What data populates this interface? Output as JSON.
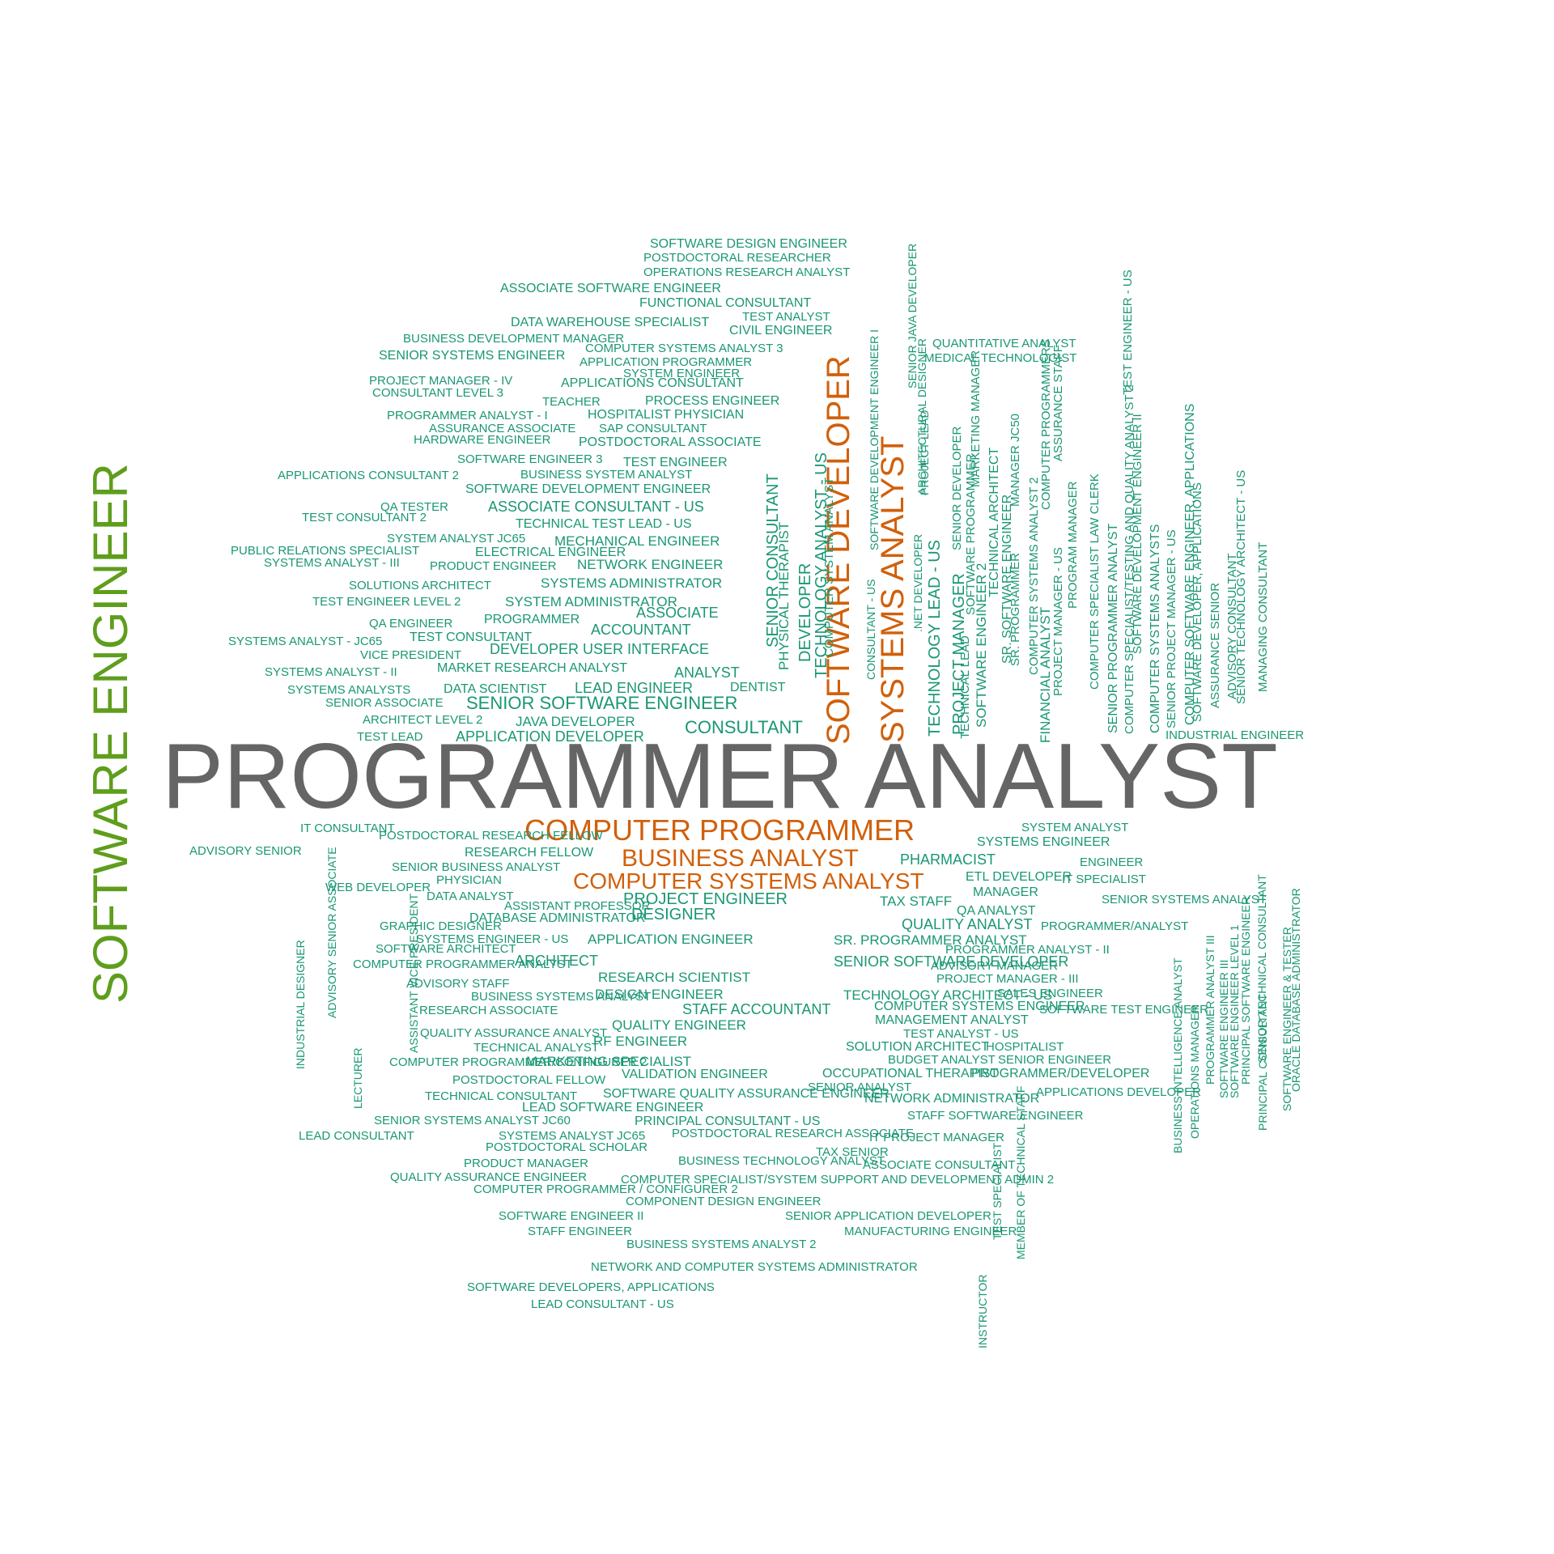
{
  "colors": {
    "green": "#1a9774",
    "orange": "#d1600b",
    "gray": "#656565",
    "lime": "#5e9e1c"
  },
  "words": [
    {
      "t": "PROGRAMMER ANALYST",
      "c": "gray"
    },
    {
      "t": "SOFTWARE ENGINEER",
      "c": "lime"
    },
    {
      "t": "COMPUTER PROGRAMMER",
      "c": "orange"
    },
    {
      "t": "BUSINESS ANALYST",
      "c": "orange"
    },
    {
      "t": "COMPUTER SYSTEMS ANALYST",
      "c": "orange"
    },
    {
      "t": "SOFTWARE DEVELOPER",
      "c": "orange"
    },
    {
      "t": "SYSTEMS ANALYST",
      "c": "orange"
    },
    {
      "t": "SOFTWARE DESIGN ENGINEER"
    },
    {
      "t": "POSTDOCTORAL RESEARCHER"
    },
    {
      "t": "OPERATIONS RESEARCH ANALYST"
    },
    {
      "t": "ASSOCIATE SOFTWARE ENGINEER"
    },
    {
      "t": "FUNCTIONAL CONSULTANT"
    },
    {
      "t": "TEST ANALYST"
    },
    {
      "t": "DATA WAREHOUSE SPECIALIST"
    },
    {
      "t": "CIVIL ENGINEER"
    },
    {
      "t": "BUSINESS DEVELOPMENT MANAGER"
    },
    {
      "t": "COMPUTER SYSTEMS ANALYST 3"
    },
    {
      "t": "SENIOR SYSTEMS ENGINEER"
    },
    {
      "t": "APPLICATION PROGRAMMER"
    },
    {
      "t": "SYSTEM ENGINEER"
    },
    {
      "t": "PROJECT MANAGER - IV"
    },
    {
      "t": "APPLICATIONS CONSULTANT"
    },
    {
      "t": "CONSULTANT LEVEL 3"
    },
    {
      "t": "TEACHER"
    },
    {
      "t": "PROCESS ENGINEER"
    },
    {
      "t": "PROGRAMMER ANALYST - I"
    },
    {
      "t": "HOSPITALIST PHYSICIAN"
    },
    {
      "t": "ASSURANCE ASSOCIATE"
    },
    {
      "t": "SAP CONSULTANT"
    },
    {
      "t": "HARDWARE ENGINEER"
    },
    {
      "t": "POSTDOCTORAL ASSOCIATE"
    },
    {
      "t": "SOFTWARE ENGINEER 3"
    },
    {
      "t": "TEST ENGINEER"
    },
    {
      "t": "APPLICATIONS CONSULTANT 2"
    },
    {
      "t": "BUSINESS SYSTEM ANALYST"
    },
    {
      "t": "SOFTWARE DEVELOPMENT ENGINEER"
    },
    {
      "t": "QA TESTER"
    },
    {
      "t": "ASSOCIATE CONSULTANT - US"
    },
    {
      "t": "TEST CONSULTANT 2"
    },
    {
      "t": "TECHNICAL TEST LEAD - US"
    },
    {
      "t": "SYSTEM ANALYST JC65"
    },
    {
      "t": "MECHANICAL ENGINEER"
    },
    {
      "t": "PUBLIC RELATIONS SPECIALIST"
    },
    {
      "t": "ELECTRICAL ENGINEER"
    },
    {
      "t": "SYSTEMS ANALYST - III"
    },
    {
      "t": "PRODUCT ENGINEER"
    },
    {
      "t": "NETWORK ENGINEER"
    },
    {
      "t": "SOLUTIONS ARCHITECT"
    },
    {
      "t": "SYSTEMS ADMINISTRATOR"
    },
    {
      "t": "TEST ENGINEER LEVEL 2"
    },
    {
      "t": "SYSTEM ADMINISTRATOR"
    },
    {
      "t": "ASSOCIATE"
    },
    {
      "t": "QA ENGINEER"
    },
    {
      "t": "PROGRAMMER"
    },
    {
      "t": "ACCOUNTANT"
    },
    {
      "t": "SYSTEMS ANALYST - JC65"
    },
    {
      "t": "TEST CONSULTANT"
    },
    {
      "t": "VICE PRESIDENT"
    },
    {
      "t": "DEVELOPER USER INTERFACE"
    },
    {
      "t": "SYSTEMS ANALYST - II"
    },
    {
      "t": "MARKET RESEARCH ANALYST"
    },
    {
      "t": "ANALYST"
    },
    {
      "t": "SYSTEMS ANALYSTS"
    },
    {
      "t": "DATA SCIENTIST"
    },
    {
      "t": "LEAD ENGINEER"
    },
    {
      "t": "DENTIST"
    },
    {
      "t": "SENIOR ASSOCIATE"
    },
    {
      "t": "SENIOR SOFTWARE ENGINEER"
    },
    {
      "t": "ARCHITECT LEVEL 2"
    },
    {
      "t": "JAVA DEVELOPER"
    },
    {
      "t": "CONSULTANT"
    },
    {
      "t": "TEST LEAD"
    },
    {
      "t": "APPLICATION DEVELOPER"
    },
    {
      "t": "QUANTITATIVE ANALYST"
    },
    {
      "t": "MEDICAL TECHNOLOGIST"
    },
    {
      "t": "INDUSTRIAL ENGINEER"
    },
    {
      "t": "TECHNOLOGY ANALYST - US"
    },
    {
      "t": "SENIOR CONSULTANT"
    },
    {
      "t": "PHYSICAL THERAPIST"
    },
    {
      "t": "DEVELOPER"
    },
    {
      "t": "COMPUTER SYSTEM ANALYST"
    },
    {
      "t": "SOFTWARE DEVELOPMENT ENGINEER I"
    },
    {
      "t": "CONSULTANT - US"
    },
    {
      "t": "SENIOR JAVA DEVELOPER"
    },
    {
      "t": "ARCHITECTURAL DESIGNER"
    },
    {
      "t": "TECHNOLOGY LEAD - US"
    },
    {
      "t": ".NET DEVELOPER"
    },
    {
      "t": "PROJECT LEAD"
    },
    {
      "t": "PROJECT MANAGER"
    },
    {
      "t": "TECHNICAL LEAD"
    },
    {
      "t": "SENIOR DEVELOPER"
    },
    {
      "t": "SOFTWARE PROGRAMMER"
    },
    {
      "t": "SOFTWARE ENGINEER 2"
    },
    {
      "t": "MARKETING MANAGER"
    },
    {
      "t": "TECHNICAL ARCHITECT"
    },
    {
      "t": "SR. SOFTWARE ENGINEER"
    },
    {
      "t": "SR. PROGRAMMER"
    },
    {
      "t": "MANAGER JC50"
    },
    {
      "t": "COMPUTER SYSTEMS ANALYST 2"
    },
    {
      "t": "COMPUTER PROGRAMMERS"
    },
    {
      "t": "ASSURANCE STAFF"
    },
    {
      "t": "FINANCIAL ANALYST"
    },
    {
      "t": "PROJECT MANAGER - US"
    },
    {
      "t": "PROGRAM MANAGER"
    },
    {
      "t": "COMPUTER SPECIALIST LAW CLERK"
    },
    {
      "t": "SENIOR PROGRAMMER ANALYST"
    },
    {
      "t": "COMPUTER SPECIALIST/TESTING AND QUALITY ANALYST 2"
    },
    {
      "t": "TEST ENGINEER - US"
    },
    {
      "t": "SOFTWARE DEVELOPMENT ENGINEER II"
    },
    {
      "t": "COMPUTER SYSTEMS ANALYSTS"
    },
    {
      "t": "SENIOR PROJECT MANAGER - US"
    },
    {
      "t": "COMPUTER SOFTWARE ENGINEER, APPLICATIONS"
    },
    {
      "t": "SOFTWARE DEVELOPER, APPLICATIONS"
    },
    {
      "t": "ASSURANCE SENIOR"
    },
    {
      "t": "ADVISORY CONSULTANT"
    },
    {
      "t": "SENIOR TECHNOLOGY ARCHITECT - US"
    },
    {
      "t": "MANAGING CONSULTANT"
    },
    {
      "t": "IT CONSULTANT"
    },
    {
      "t": "POSTDOCTORAL RESEARCH FELLOW"
    },
    {
      "t": "ADVISORY SENIOR"
    },
    {
      "t": "RESEARCH FELLOW"
    },
    {
      "t": "SENIOR BUSINESS ANALYST"
    },
    {
      "t": "WEB DEVELOPER"
    },
    {
      "t": "PHYSICIAN"
    },
    {
      "t": "DATA ANALYST"
    },
    {
      "t": "ASSISTANT PROFESSOR"
    },
    {
      "t": "PROJECT ENGINEER"
    },
    {
      "t": "DATABASE ADMINISTRATOR"
    },
    {
      "t": "DESIGNER"
    },
    {
      "t": "GRAPHIC DESIGNER"
    },
    {
      "t": "SYSTEMS ENGINEER - US"
    },
    {
      "t": "APPLICATION ENGINEER"
    },
    {
      "t": "SOFTWARE ARCHITECT"
    },
    {
      "t": "COMPUTER PROGRAMMER ANALYST"
    },
    {
      "t": "ARCHITECT"
    },
    {
      "t": "SENIOR SOFTWARE DEVELOPER"
    },
    {
      "t": "RESEARCH SCIENTIST"
    },
    {
      "t": "ADVISORY STAFF"
    },
    {
      "t": "BUSINESS SYSTEMS ANALYST"
    },
    {
      "t": "DESIGN ENGINEER"
    },
    {
      "t": "TECHNOLOGY ARCHITECT - US"
    },
    {
      "t": "RESEARCH ASSOCIATE"
    },
    {
      "t": "STAFF ACCOUNTANT"
    },
    {
      "t": "COMPUTER SYSTEMS ENGINEER"
    },
    {
      "t": "QUALITY ENGINEER"
    },
    {
      "t": "QUALITY ASSURANCE ANALYST"
    },
    {
      "t": "RF ENGINEER"
    },
    {
      "t": "TECHNICAL ANALYST"
    },
    {
      "t": "COMPUTER PROGRAMMER/CONFIGURER 2"
    },
    {
      "t": "MARKETING SPECIALIST"
    },
    {
      "t": "POSTDOCTORAL FELLOW"
    },
    {
      "t": "VALIDATION ENGINEER"
    },
    {
      "t": "TECHNICAL CONSULTANT"
    },
    {
      "t": "SOFTWARE QUALITY ASSURANCE ENGINEER"
    },
    {
      "t": "LEAD SOFTWARE ENGINEER"
    },
    {
      "t": "SENIOR SYSTEMS ANALYST JC60"
    },
    {
      "t": "PRINCIPAL CONSULTANT - US"
    },
    {
      "t": "LEAD CONSULTANT"
    },
    {
      "t": "SYSTEMS ANALYST JC65"
    },
    {
      "t": "POSTDOCTORAL RESEARCH ASSOCIATE"
    },
    {
      "t": "POSTDOCTORAL SCHOLAR"
    },
    {
      "t": "PRODUCT MANAGER"
    },
    {
      "t": "BUSINESS TECHNOLOGY ANALYST"
    },
    {
      "t": "QUALITY ASSURANCE ENGINEER"
    },
    {
      "t": "COMPUTER SPECIALIST/SYSTEM SUPPORT AND DEVELOPMENT ADMIN 2"
    },
    {
      "t": "COMPUTER PROGRAMMER / CONFIGURER 2"
    },
    {
      "t": "COMPONENT DESIGN ENGINEER"
    },
    {
      "t": "SOFTWARE ENGINEER II"
    },
    {
      "t": "SENIOR APPLICATION DEVELOPER"
    },
    {
      "t": "STAFF ENGINEER"
    },
    {
      "t": "MANUFACTURING ENGINEER"
    },
    {
      "t": "BUSINESS SYSTEMS ANALYST 2"
    },
    {
      "t": "NETWORK AND COMPUTER SYSTEMS ADMINISTRATOR"
    },
    {
      "t": "SOFTWARE DEVELOPERS, APPLICATIONS"
    },
    {
      "t": "LEAD CONSULTANT - US"
    },
    {
      "t": "SYSTEM ANALYST"
    },
    {
      "t": "SYSTEMS ENGINEER"
    },
    {
      "t": "PHARMACIST"
    },
    {
      "t": "ENGINEER"
    },
    {
      "t": "ETL DEVELOPER"
    },
    {
      "t": "IT SPECIALIST"
    },
    {
      "t": "MANAGER"
    },
    {
      "t": "TAX STAFF"
    },
    {
      "t": "SENIOR SYSTEMS ANALYST"
    },
    {
      "t": "QA ANALYST"
    },
    {
      "t": "QUALITY ANALYST"
    },
    {
      "t": "PROGRAMMER/ANALYST"
    },
    {
      "t": "SR. PROGRAMMER ANALYST"
    },
    {
      "t": "PROGRAMMER ANALYST - II"
    },
    {
      "t": "ADVISORY MANAGER"
    },
    {
      "t": "PROJECT MANAGER - III"
    },
    {
      "t": "SALES ENGINEER"
    },
    {
      "t": "SOFTWARE TEST ENGINEER"
    },
    {
      "t": "MANAGEMENT ANALYST"
    },
    {
      "t": "TEST ANALYST - US"
    },
    {
      "t": "SOLUTION ARCHITECT"
    },
    {
      "t": "HOSPITALIST"
    },
    {
      "t": "BUDGET ANALYST"
    },
    {
      "t": "SENIOR ENGINEER"
    },
    {
      "t": "OCCUPATIONAL THERAPIST"
    },
    {
      "t": "PROGRAMMER/DEVELOPER"
    },
    {
      "t": "SENIOR ANALYST"
    },
    {
      "t": "APPLICATIONS DEVELOPER"
    },
    {
      "t": "NETWORK ADMINISTRATOR"
    },
    {
      "t": "STAFF SOFTWARE ENGINEER"
    },
    {
      "t": "IT PROJECT MANAGER"
    },
    {
      "t": "TAX SENIOR"
    },
    {
      "t": "ASSOCIATE CONSULTANT"
    },
    {
      "t": "INDUSTRIAL DESIGNER"
    },
    {
      "t": "ADVISORY SENIOR ASSOCIATE"
    },
    {
      "t": "LECTURER"
    },
    {
      "t": "ASSISTANT VICE PRESIDENT"
    },
    {
      "t": "INSTRUCTOR"
    },
    {
      "t": "TEST SPECIALIST"
    },
    {
      "t": "MEMBER OF TECHNICAL STAFF"
    },
    {
      "t": "BUSINESS INTELLIGENCE ANALYST"
    },
    {
      "t": "OPERATIONS MANAGER"
    },
    {
      "t": "PROGRAMMER ANALYST III"
    },
    {
      "t": "SOFTWARE ENGINEER III"
    },
    {
      "t": "SOFTWARE ENGINEER LEVEL 1"
    },
    {
      "t": "PRINCIPAL SOFTWARE ENGINEER"
    },
    {
      "t": "SENIOR TECHNICAL CONSULTANT"
    },
    {
      "t": "PRINCIPAL CONSULTANT"
    },
    {
      "t": "SOFTWARE ENGINEER & TESTER"
    },
    {
      "t": "ORACLE DATABASE ADMINISTRATOR"
    }
  ]
}
